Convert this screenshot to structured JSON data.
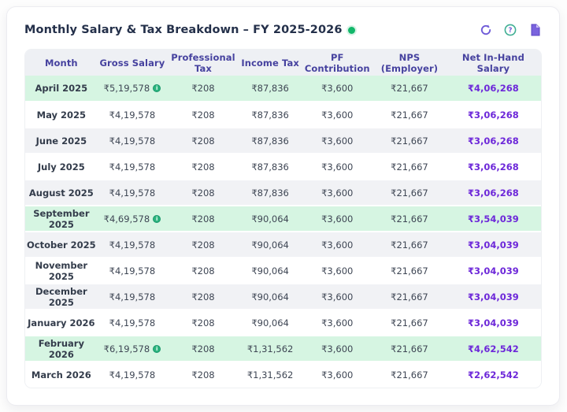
{
  "card": {
    "title": "Monthly Salary & Tax Breakdown – FY 2025-2026",
    "toolbar": {
      "refresh_tooltip": "refresh",
      "help_tooltip": "help",
      "document_tooltip": "report"
    }
  },
  "colors": {
    "accent_purple": "#6d28d9",
    "header_indigo": "#46429f",
    "highlight_green_row": "#d6f5e2",
    "status_green": "#12b76a",
    "icon_purple": "#6f5bd8",
    "icon_teal": "#3fae93"
  },
  "table": {
    "columns": [
      "Month",
      "Gross Salary",
      "Professional Tax",
      "Income Tax",
      "PF Contribution",
      "NPS (Employer)",
      "Net In-Hand Salary"
    ],
    "info_icon_glyph": "i",
    "rows": [
      {
        "month": "April 2025",
        "gross": "₹5,19,578",
        "gross_info": true,
        "professional_tax": "₹208",
        "income_tax": "₹87,836",
        "pf": "₹3,600",
        "nps": "₹21,667",
        "net": "₹4,06,268",
        "highlight": true
      },
      {
        "month": "May 2025",
        "gross": "₹4,19,578",
        "gross_info": false,
        "professional_tax": "₹208",
        "income_tax": "₹87,836",
        "pf": "₹3,600",
        "nps": "₹21,667",
        "net": "₹3,06,268",
        "highlight": false
      },
      {
        "month": "June 2025",
        "gross": "₹4,19,578",
        "gross_info": false,
        "professional_tax": "₹208",
        "income_tax": "₹87,836",
        "pf": "₹3,600",
        "nps": "₹21,667",
        "net": "₹3,06,268",
        "highlight": false
      },
      {
        "month": "July 2025",
        "gross": "₹4,19,578",
        "gross_info": false,
        "professional_tax": "₹208",
        "income_tax": "₹87,836",
        "pf": "₹3,600",
        "nps": "₹21,667",
        "net": "₹3,06,268",
        "highlight": false
      },
      {
        "month": "August 2025",
        "gross": "₹4,19,578",
        "gross_info": false,
        "professional_tax": "₹208",
        "income_tax": "₹87,836",
        "pf": "₹3,600",
        "nps": "₹21,667",
        "net": "₹3,06,268",
        "highlight": false
      },
      {
        "month": "September 2025",
        "gross": "₹4,69,578",
        "gross_info": true,
        "professional_tax": "₹208",
        "income_tax": "₹90,064",
        "pf": "₹3,600",
        "nps": "₹21,667",
        "net": "₹3,54,039",
        "highlight": true
      },
      {
        "month": "October 2025",
        "gross": "₹4,19,578",
        "gross_info": false,
        "professional_tax": "₹208",
        "income_tax": "₹90,064",
        "pf": "₹3,600",
        "nps": "₹21,667",
        "net": "₹3,04,039",
        "highlight": false
      },
      {
        "month": "November 2025",
        "gross": "₹4,19,578",
        "gross_info": false,
        "professional_tax": "₹208",
        "income_tax": "₹90,064",
        "pf": "₹3,600",
        "nps": "₹21,667",
        "net": "₹3,04,039",
        "highlight": false
      },
      {
        "month": "December 2025",
        "gross": "₹4,19,578",
        "gross_info": false,
        "professional_tax": "₹208",
        "income_tax": "₹90,064",
        "pf": "₹3,600",
        "nps": "₹21,667",
        "net": "₹3,04,039",
        "highlight": false
      },
      {
        "month": "January 2026",
        "gross": "₹4,19,578",
        "gross_info": false,
        "professional_tax": "₹208",
        "income_tax": "₹90,064",
        "pf": "₹3,600",
        "nps": "₹21,667",
        "net": "₹3,04,039",
        "highlight": false
      },
      {
        "month": "February 2026",
        "gross": "₹6,19,578",
        "gross_info": true,
        "professional_tax": "₹208",
        "income_tax": "₹1,31,562",
        "pf": "₹3,600",
        "nps": "₹21,667",
        "net": "₹4,62,542",
        "highlight": true
      },
      {
        "month": "March 2026",
        "gross": "₹4,19,578",
        "gross_info": false,
        "professional_tax": "₹208",
        "income_tax": "₹1,31,562",
        "pf": "₹3,600",
        "nps": "₹21,667",
        "net": "₹2,62,542",
        "highlight": false
      }
    ]
  }
}
